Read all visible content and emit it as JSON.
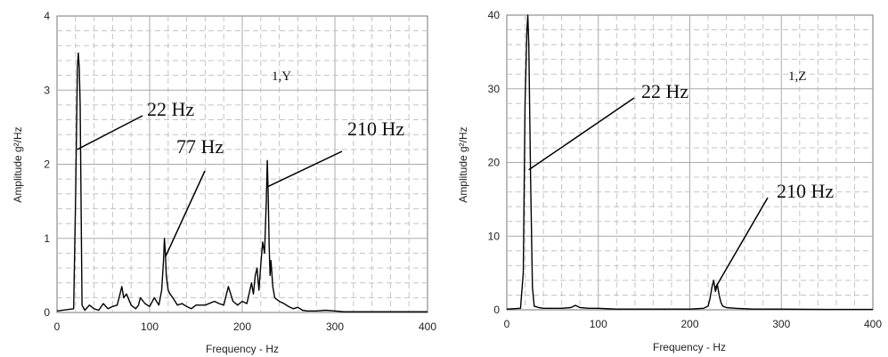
{
  "chart_data": [
    {
      "type": "line",
      "tag": "1,Y",
      "xlabel": "Frequency - Hz",
      "ylabel": "Amplitude g²/Hz",
      "xlim": [
        0,
        400
      ],
      "ylim": [
        0,
        4
      ],
      "xticks": [
        "0",
        "100",
        "200",
        "300",
        "400"
      ],
      "yticks": [
        "0",
        "1",
        "2",
        "3",
        "4"
      ],
      "grid": true,
      "series": [
        {
          "x": [
            0,
            18,
            20,
            22,
            23,
            24,
            25,
            27,
            30,
            35,
            40,
            45,
            50,
            55,
            60,
            65,
            70,
            72,
            75,
            80,
            85,
            88,
            90,
            95,
            100,
            105,
            110,
            113,
            115,
            116,
            117,
            118,
            120,
            122,
            125,
            130,
            135,
            140,
            145,
            150,
            160,
            170,
            175,
            180,
            185,
            190,
            195,
            200,
            205,
            210,
            212,
            214,
            216,
            218,
            220,
            222,
            224,
            226,
            227,
            228,
            229,
            230,
            231,
            233,
            235,
            240,
            245,
            250,
            255,
            260,
            265,
            270,
            280,
            290,
            300,
            310,
            330,
            350,
            370,
            400
          ],
          "y": [
            0.02,
            0.05,
            1.5,
            3.3,
            3.5,
            3.3,
            2.8,
            0.1,
            0.03,
            0.1,
            0.05,
            0.03,
            0.12,
            0.05,
            0.08,
            0.1,
            0.35,
            0.2,
            0.25,
            0.1,
            0.05,
            0.1,
            0.2,
            0.12,
            0.08,
            0.2,
            0.1,
            0.3,
            0.7,
            1.0,
            0.8,
            0.5,
            0.3,
            0.25,
            0.2,
            0.1,
            0.12,
            0.08,
            0.05,
            0.1,
            0.1,
            0.15,
            0.12,
            0.1,
            0.35,
            0.15,
            0.1,
            0.15,
            0.12,
            0.4,
            0.25,
            0.5,
            0.6,
            0.3,
            0.65,
            0.95,
            0.8,
            1.5,
            2.05,
            1.6,
            0.9,
            0.5,
            0.7,
            0.35,
            0.2,
            0.15,
            0.12,
            0.08,
            0.05,
            0.07,
            0.03,
            0.02,
            0.02,
            0.03,
            0.02,
            0.01,
            0.01,
            0.01,
            0.01,
            0.01
          ]
        }
      ],
      "annotations": [
        {
          "text": "22 Hz",
          "x": 22,
          "y": 2.2
        },
        {
          "text": "77 Hz",
          "x": 117,
          "y": 0.75
        },
        {
          "text": "210 Hz",
          "x": 228,
          "y": 1.7
        }
      ]
    },
    {
      "type": "line",
      "tag": "1,Z",
      "xlabel": "Frequency - Hz",
      "ylabel": "Amplitude g²/Hz",
      "xlim": [
        0,
        400
      ],
      "ylim": [
        0,
        40
      ],
      "xticks": [
        "0",
        "100",
        "200",
        "300",
        "400"
      ],
      "yticks": [
        "0",
        "10",
        "20",
        "30",
        "40"
      ],
      "grid": true,
      "series": [
        {
          "x": [
            0,
            15,
            18,
            20,
            22,
            23,
            24,
            26,
            28,
            30,
            35,
            40,
            50,
            60,
            70,
            75,
            80,
            90,
            100,
            120,
            150,
            180,
            200,
            215,
            220,
            222,
            224,
            226,
            228,
            230,
            232,
            234,
            236,
            238,
            240,
            250,
            270,
            300,
            350,
            400
          ],
          "y": [
            0.1,
            0.2,
            5,
            28,
            38,
            40,
            36,
            18,
            3,
            0.5,
            0.3,
            0.2,
            0.2,
            0.2,
            0.3,
            0.6,
            0.3,
            0.2,
            0.2,
            0.1,
            0.1,
            0.1,
            0.1,
            0.2,
            0.5,
            1.5,
            3,
            4,
            2.5,
            3.5,
            2,
            1,
            0.5,
            0.4,
            0.3,
            0.2,
            0.1,
            0.1,
            0.05,
            0.05
          ]
        }
      ],
      "annotations": [
        {
          "text": "22 Hz",
          "x": 24,
          "y": 19
        },
        {
          "text": "210 Hz",
          "x": 228,
          "y": 3
        }
      ]
    }
  ]
}
